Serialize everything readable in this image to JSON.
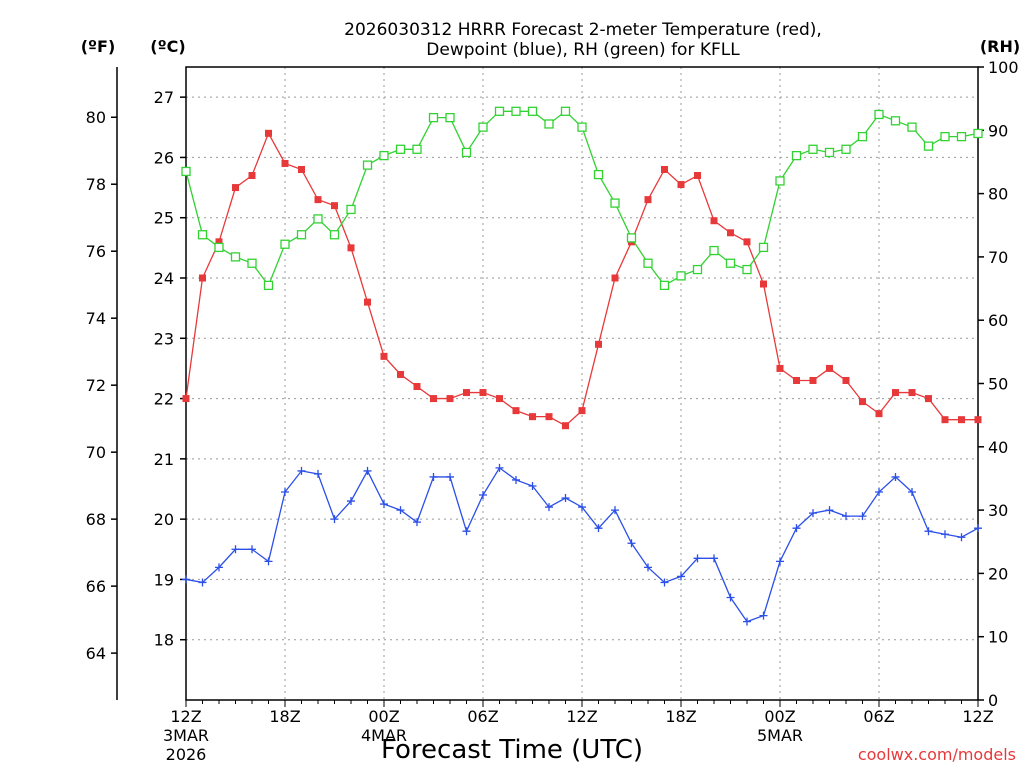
{
  "chart_data": {
    "type": "line",
    "title": "2026030312 HRRR Forecast 2-meter Temperature (red),",
    "title_line2": "Dewpoint (blue), RH (green) for KFLL",
    "xlabel": "Forecast Time (UTC)",
    "credit": "coolwx.com/models",
    "units": {
      "fahrenheit": "(ºF)",
      "celsius": "(ºC)",
      "rh": "(RH)"
    },
    "grid": true,
    "x_hours": [
      0,
      1,
      2,
      3,
      4,
      5,
      6,
      7,
      8,
      9,
      10,
      11,
      12,
      13,
      14,
      15,
      16,
      17,
      18,
      19,
      20,
      21,
      22,
      23,
      24,
      25,
      26,
      27,
      28,
      29,
      30,
      31,
      32,
      33,
      34,
      35,
      36,
      37,
      38,
      39,
      40,
      41,
      42,
      43,
      44,
      45,
      46,
      47,
      48
    ],
    "x_range": [
      0,
      48
    ],
    "x_ticks": [
      {
        "hour": 0,
        "label": "12Z",
        "sub1": "3MAR",
        "sub2": "2026"
      },
      {
        "hour": 6,
        "label": "18Z",
        "sub1": "",
        "sub2": ""
      },
      {
        "hour": 12,
        "label": "00Z",
        "sub1": "4MAR",
        "sub2": ""
      },
      {
        "hour": 18,
        "label": "06Z",
        "sub1": "",
        "sub2": ""
      },
      {
        "hour": 24,
        "label": "12Z",
        "sub1": "",
        "sub2": ""
      },
      {
        "hour": 30,
        "label": "18Z",
        "sub1": "",
        "sub2": ""
      },
      {
        "hour": 36,
        "label": "00Z",
        "sub1": "5MAR",
        "sub2": ""
      },
      {
        "hour": 42,
        "label": "06Z",
        "sub1": "",
        "sub2": ""
      },
      {
        "hour": 48,
        "label": "12Z",
        "sub1": "",
        "sub2": ""
      }
    ],
    "celsius_range": [
      17,
      27.5
    ],
    "celsius_ticks": [
      "18",
      "19",
      "20",
      "21",
      "22",
      "23",
      "24",
      "25",
      "26",
      "27"
    ],
    "fahrenheit_ticks": [
      "64",
      "66",
      "68",
      "70",
      "72",
      "74",
      "76",
      "78",
      "80"
    ],
    "rh_range": [
      0,
      100
    ],
    "rh_ticks": [
      "0",
      "10",
      "20",
      "30",
      "40",
      "50",
      "60",
      "70",
      "80",
      "90",
      "100"
    ],
    "series": [
      {
        "name": "2-meter Temperature",
        "unit": "C",
        "color": "#e8393a",
        "marker": "filled-square",
        "values": [
          22.0,
          24.0,
          24.6,
          25.5,
          25.7,
          26.4,
          25.9,
          25.8,
          25.3,
          25.2,
          24.5,
          23.6,
          22.7,
          22.4,
          22.2,
          22.0,
          22.0,
          22.1,
          22.1,
          22.0,
          21.8,
          21.7,
          21.7,
          21.55,
          21.8,
          22.9,
          24.0,
          24.6,
          25.3,
          25.8,
          25.55,
          25.7,
          24.95,
          24.75,
          24.6,
          23.9,
          22.5,
          22.3,
          22.3,
          22.5,
          22.3,
          21.95,
          21.75,
          22.1,
          22.1,
          22.0,
          21.65,
          21.65,
          21.65
        ]
      },
      {
        "name": "Dewpoint",
        "unit": "C",
        "color": "#2b4fe8",
        "marker": "plus",
        "values": [
          19.0,
          18.95,
          19.2,
          19.5,
          19.5,
          19.3,
          20.45,
          20.8,
          20.75,
          20.0,
          20.3,
          20.8,
          20.25,
          20.15,
          19.95,
          20.7,
          20.7,
          19.8,
          20.4,
          20.85,
          20.65,
          20.55,
          20.2,
          20.35,
          20.2,
          19.85,
          20.15,
          19.6,
          19.2,
          18.95,
          19.05,
          19.35,
          19.35,
          18.7,
          18.3,
          18.4,
          19.3,
          19.85,
          20.1,
          20.15,
          20.05,
          20.05,
          20.45,
          20.7,
          20.45,
          19.8,
          19.75,
          19.7,
          19.85
        ]
      },
      {
        "name": "RH",
        "unit": "%",
        "color": "#32d232",
        "marker": "open-square",
        "values": [
          83.5,
          73.5,
          71.5,
          70.0,
          69.0,
          65.5,
          72.0,
          73.5,
          76.0,
          73.5,
          77.5,
          84.5,
          86.0,
          87.0,
          87.0,
          92.0,
          92.0,
          86.5,
          90.5,
          93.0,
          93.0,
          93.0,
          91.0,
          93.0,
          90.5,
          83.0,
          78.5,
          73.0,
          69.0,
          65.5,
          67.0,
          68.0,
          71.0,
          69.0,
          68.0,
          71.5,
          82.0,
          86.0,
          87.0,
          86.5,
          87.0,
          89.0,
          92.5,
          91.5,
          90.5,
          87.5,
          89.0,
          89.0,
          89.5
        ]
      }
    ]
  }
}
